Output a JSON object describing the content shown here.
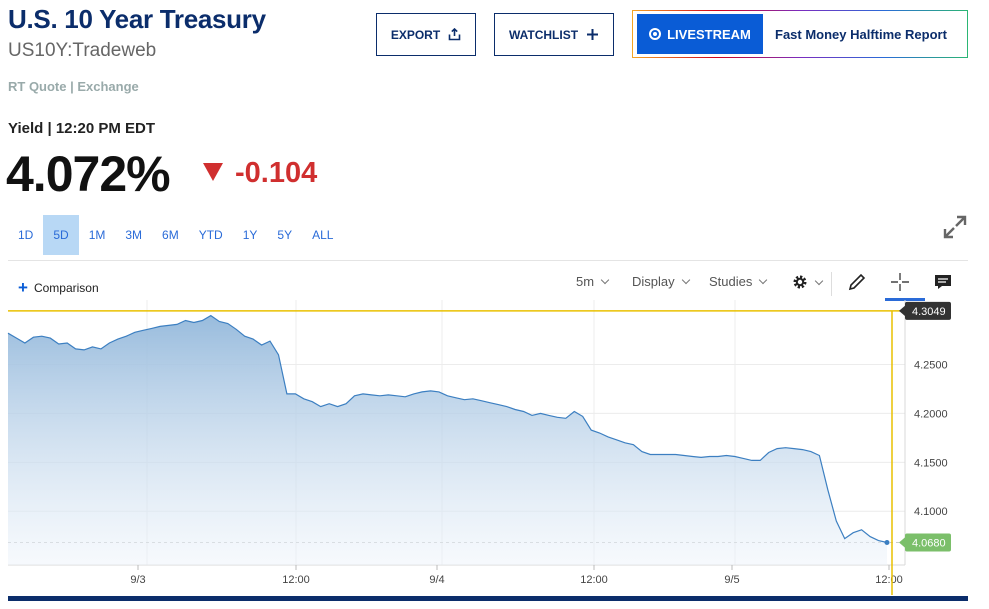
{
  "header": {
    "title": "U.S. 10 Year Treasury",
    "symbol": "US10Y:Tradeweb",
    "source": "RT Quote | Exchange"
  },
  "quote": {
    "yield_label": "Yield | 12:20 PM EDT",
    "price": "4.072%",
    "change": "-0.104",
    "change_color": "#d02f2f"
  },
  "actions": {
    "export_label": "EXPORT",
    "export_icon": "share-icon",
    "watchlist_label": "WATCHLIST",
    "watchlist_icon": "plus-icon",
    "livestream_label": "LIVESTREAM",
    "livestream_show": "Fast Money Halftime Report"
  },
  "ranges": {
    "items": [
      "1D",
      "5D",
      "1M",
      "3M",
      "6M",
      "YTD",
      "1Y",
      "5Y",
      "ALL"
    ],
    "active": "5D"
  },
  "toolbar": {
    "comparison_label": "Comparison",
    "interval_label": "5m",
    "display_label": "Display",
    "studies_label": "Studies",
    "icons": [
      "gear-icon",
      "pencil-icon",
      "crosshair-icon",
      "comment-icon",
      "expand-icon"
    ]
  },
  "colors": {
    "brand": "#0b2d6b",
    "accent": "#2a6bd8",
    "down": "#d02f2f",
    "last_price": "#7bbf6a",
    "crosshair": "#e9c000"
  },
  "chart_data": {
    "type": "area",
    "y_tick_labels": [
      "4.1000",
      "4.1500",
      "4.2000",
      "4.2500"
    ],
    "y_ticks": [
      4.1,
      4.15,
      4.2,
      4.25
    ],
    "x_tick_labels": [
      "9/3",
      "12:00",
      "9/4",
      "12:00",
      "9/5",
      "12:00"
    ],
    "ylim": [
      4.045,
      4.316
    ],
    "crosshair_value": "4.3049",
    "last_value": "4.0680",
    "series": [
      {
        "values": [
          4.282,
          4.277,
          4.272,
          4.278,
          4.279,
          4.277,
          4.271,
          4.272,
          4.266,
          4.265,
          4.268,
          4.266,
          4.272,
          4.276,
          4.279,
          4.283,
          4.285,
          4.287,
          4.289,
          4.29,
          4.291,
          4.295,
          4.293,
          4.295,
          4.3,
          4.294,
          4.292,
          4.286,
          4.279,
          4.276,
          4.27,
          4.274,
          4.26,
          4.22,
          4.22,
          4.215,
          4.212,
          4.207,
          4.21,
          4.207,
          4.21,
          4.218,
          4.22,
          4.219,
          4.218,
          4.219,
          4.218,
          4.217,
          4.22,
          4.222,
          4.223,
          4.222,
          4.218,
          4.216,
          4.214,
          4.215,
          4.213,
          4.211,
          4.209,
          4.207,
          4.204,
          4.202,
          4.198,
          4.2,
          4.198,
          4.196,
          4.195,
          4.202,
          4.197,
          4.183,
          4.18,
          4.176,
          4.173,
          4.17,
          4.168,
          4.161,
          4.158,
          4.158,
          4.158,
          4.158,
          4.157,
          4.156,
          4.155,
          4.156,
          4.156,
          4.157,
          4.156,
          4.154,
          4.152,
          4.152,
          4.16,
          4.164,
          4.165,
          4.164,
          4.163,
          4.161,
          4.157,
          4.122,
          4.09,
          4.072,
          4.078,
          4.081,
          4.074,
          4.07,
          4.068
        ]
      }
    ]
  }
}
